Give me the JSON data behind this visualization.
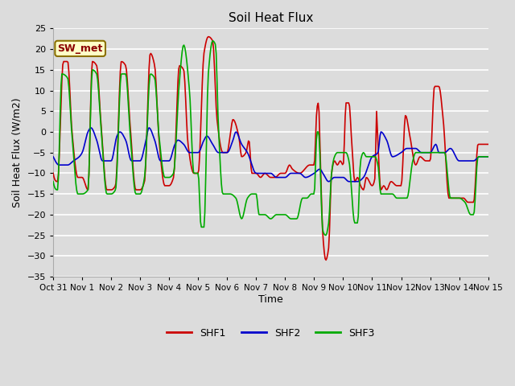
{
  "title": "Soil Heat Flux",
  "xlabel": "Time",
  "ylabel": "Soil Heat Flux (W/m2)",
  "ylim": [
    -35,
    25
  ],
  "bg_color": "#dcdcdc",
  "plot_bg_color": "#dcdcdc",
  "grid_color": "white",
  "annotation_text": "SW_met",
  "annotation_bg": "#ffffc8",
  "annotation_border": "#8B7000",
  "annotation_text_color": "#8B0000",
  "series": {
    "SHF1": {
      "color": "#cc0000",
      "linewidth": 1.2
    },
    "SHF2": {
      "color": "#0000cc",
      "linewidth": 1.2
    },
    "SHF3": {
      "color": "#00aa00",
      "linewidth": 1.2
    }
  },
  "x_tick_labels": [
    "Oct 31",
    "Nov 1",
    "Nov 2",
    "Nov 3",
    "Nov 4",
    "Nov 5",
    "Nov 6",
    "Nov 7",
    "Nov 8",
    "Nov 9",
    "Nov 10",
    "Nov 11",
    "Nov 12",
    "Nov 13",
    "Nov 14",
    "Nov 15"
  ],
  "y_ticks": [
    -35,
    -30,
    -25,
    -20,
    -15,
    -10,
    -5,
    0,
    5,
    10,
    15,
    20,
    25
  ],
  "shf1_keypoints": [
    [
      0.0,
      -10
    ],
    [
      0.15,
      -12
    ],
    [
      0.35,
      17
    ],
    [
      0.5,
      17
    ],
    [
      0.65,
      0
    ],
    [
      0.85,
      -11
    ],
    [
      1.0,
      -11
    ],
    [
      1.2,
      -14
    ],
    [
      1.35,
      17
    ],
    [
      1.5,
      16
    ],
    [
      1.65,
      2
    ],
    [
      1.85,
      -14
    ],
    [
      2.0,
      -14
    ],
    [
      2.15,
      -13
    ],
    [
      2.35,
      17
    ],
    [
      2.5,
      16
    ],
    [
      2.65,
      2
    ],
    [
      2.85,
      -14
    ],
    [
      3.0,
      -14
    ],
    [
      3.15,
      -12
    ],
    [
      3.35,
      19
    ],
    [
      3.5,
      16
    ],
    [
      3.65,
      -2
    ],
    [
      3.85,
      -13
    ],
    [
      4.0,
      -13
    ],
    [
      4.15,
      -11
    ],
    [
      4.35,
      16
    ],
    [
      4.5,
      15
    ],
    [
      4.65,
      -3
    ],
    [
      4.85,
      -10
    ],
    [
      5.0,
      -10
    ],
    [
      5.2,
      19
    ],
    [
      5.35,
      23
    ],
    [
      5.5,
      22
    ],
    [
      5.65,
      3
    ],
    [
      5.85,
      -5
    ],
    [
      6.0,
      -5
    ],
    [
      6.1,
      -1
    ],
    [
      6.2,
      3
    ],
    [
      6.4,
      -1
    ],
    [
      6.5,
      -6
    ],
    [
      6.65,
      -5
    ],
    [
      6.75,
      -2
    ],
    [
      6.85,
      -10
    ],
    [
      7.0,
      -10
    ],
    [
      7.15,
      -11
    ],
    [
      7.3,
      -10
    ],
    [
      7.5,
      -11
    ],
    [
      7.65,
      -11
    ],
    [
      7.85,
      -10
    ],
    [
      8.0,
      -10
    ],
    [
      8.15,
      -8
    ],
    [
      8.25,
      -9
    ],
    [
      8.5,
      -10
    ],
    [
      8.85,
      -8
    ],
    [
      9.0,
      -8
    ],
    [
      9.1,
      6
    ],
    [
      9.15,
      7
    ],
    [
      9.2,
      -3
    ],
    [
      9.3,
      -25
    ],
    [
      9.4,
      -31
    ],
    [
      9.5,
      -28
    ],
    [
      9.6,
      -10
    ],
    [
      9.7,
      -7
    ],
    [
      9.8,
      -8
    ],
    [
      9.9,
      -7
    ],
    [
      10.0,
      -8
    ],
    [
      10.1,
      7
    ],
    [
      10.2,
      7
    ],
    [
      10.3,
      -3
    ],
    [
      10.4,
      -12
    ],
    [
      10.5,
      -11
    ],
    [
      10.6,
      -13
    ],
    [
      10.7,
      -14
    ],
    [
      10.8,
      -11
    ],
    [
      11.0,
      -13
    ],
    [
      11.1,
      -11
    ],
    [
      11.15,
      5
    ],
    [
      11.2,
      -3
    ],
    [
      11.3,
      -14
    ],
    [
      11.4,
      -13
    ],
    [
      11.5,
      -14
    ],
    [
      11.65,
      -12
    ],
    [
      11.85,
      -13
    ],
    [
      12.0,
      -13
    ],
    [
      12.15,
      4
    ],
    [
      12.3,
      -1
    ],
    [
      12.5,
      -8
    ],
    [
      12.65,
      -6
    ],
    [
      12.85,
      -7
    ],
    [
      13.0,
      -7
    ],
    [
      13.15,
      11
    ],
    [
      13.3,
      11
    ],
    [
      13.45,
      3
    ],
    [
      13.65,
      -16
    ],
    [
      13.85,
      -16
    ],
    [
      14.0,
      -16
    ],
    [
      14.15,
      -16
    ],
    [
      14.3,
      -17
    ],
    [
      14.5,
      -17
    ],
    [
      14.65,
      -3
    ],
    [
      14.85,
      -3
    ],
    [
      15.0,
      -3
    ]
  ],
  "shf2_keypoints": [
    [
      0.0,
      -6
    ],
    [
      0.2,
      -8
    ],
    [
      0.5,
      -8
    ],
    [
      0.7,
      -7
    ],
    [
      0.9,
      -6
    ],
    [
      1.0,
      -5
    ],
    [
      1.2,
      0
    ],
    [
      1.3,
      1
    ],
    [
      1.5,
      -2
    ],
    [
      1.7,
      -7
    ],
    [
      2.0,
      -7
    ],
    [
      2.2,
      -1
    ],
    [
      2.3,
      0
    ],
    [
      2.5,
      -2
    ],
    [
      2.7,
      -7
    ],
    [
      3.0,
      -7
    ],
    [
      3.2,
      -2
    ],
    [
      3.3,
      1
    ],
    [
      3.5,
      -2
    ],
    [
      3.7,
      -7
    ],
    [
      4.0,
      -7
    ],
    [
      4.2,
      -3
    ],
    [
      4.3,
      -2
    ],
    [
      4.5,
      -3
    ],
    [
      4.7,
      -5
    ],
    [
      5.0,
      -5
    ],
    [
      5.2,
      -2
    ],
    [
      5.3,
      -1
    ],
    [
      5.5,
      -3
    ],
    [
      5.7,
      -5
    ],
    [
      6.0,
      -5
    ],
    [
      6.2,
      -2
    ],
    [
      6.3,
      0
    ],
    [
      6.5,
      -3
    ],
    [
      6.7,
      -5
    ],
    [
      7.0,
      -10
    ],
    [
      7.2,
      -10
    ],
    [
      7.5,
      -10
    ],
    [
      7.7,
      -11
    ],
    [
      8.0,
      -11
    ],
    [
      8.2,
      -10
    ],
    [
      8.5,
      -10
    ],
    [
      8.7,
      -11
    ],
    [
      9.0,
      -10
    ],
    [
      9.2,
      -9
    ],
    [
      9.3,
      -10
    ],
    [
      9.5,
      -12
    ],
    [
      9.7,
      -11
    ],
    [
      10.0,
      -11
    ],
    [
      10.2,
      -12
    ],
    [
      10.5,
      -12
    ],
    [
      10.7,
      -11
    ],
    [
      11.0,
      -6
    ],
    [
      11.2,
      -5
    ],
    [
      11.3,
      0
    ],
    [
      11.5,
      -2
    ],
    [
      11.7,
      -6
    ],
    [
      12.0,
      -5
    ],
    [
      12.2,
      -4
    ],
    [
      12.5,
      -4
    ],
    [
      12.7,
      -5
    ],
    [
      13.0,
      -5
    ],
    [
      13.2,
      -3
    ],
    [
      13.3,
      -5
    ],
    [
      13.5,
      -5
    ],
    [
      13.7,
      -4
    ],
    [
      14.0,
      -7
    ],
    [
      14.2,
      -7
    ],
    [
      14.5,
      -7
    ],
    [
      14.7,
      -6
    ],
    [
      15.0,
      -6
    ]
  ],
  "shf3_keypoints": [
    [
      0.0,
      -12
    ],
    [
      0.15,
      -14
    ],
    [
      0.3,
      14
    ],
    [
      0.5,
      13
    ],
    [
      0.65,
      -1
    ],
    [
      0.85,
      -15
    ],
    [
      1.0,
      -15
    ],
    [
      1.2,
      -14
    ],
    [
      1.35,
      15
    ],
    [
      1.5,
      14
    ],
    [
      1.65,
      1
    ],
    [
      1.85,
      -15
    ],
    [
      2.0,
      -15
    ],
    [
      2.15,
      -14
    ],
    [
      2.35,
      14
    ],
    [
      2.5,
      14
    ],
    [
      2.65,
      0
    ],
    [
      2.85,
      -15
    ],
    [
      3.0,
      -15
    ],
    [
      3.15,
      -11
    ],
    [
      3.35,
      14
    ],
    [
      3.5,
      13
    ],
    [
      3.65,
      -1
    ],
    [
      3.85,
      -11
    ],
    [
      4.0,
      -11
    ],
    [
      4.15,
      -10
    ],
    [
      4.35,
      12
    ],
    [
      4.5,
      21
    ],
    [
      4.7,
      10
    ],
    [
      4.85,
      -10
    ],
    [
      5.0,
      -10
    ],
    [
      5.1,
      -23
    ],
    [
      5.2,
      -23
    ],
    [
      5.35,
      14
    ],
    [
      5.5,
      22
    ],
    [
      5.6,
      21
    ],
    [
      5.7,
      1
    ],
    [
      5.85,
      -15
    ],
    [
      6.0,
      -15
    ],
    [
      6.1,
      -15
    ],
    [
      6.3,
      -16
    ],
    [
      6.5,
      -21
    ],
    [
      6.7,
      -16
    ],
    [
      6.85,
      -15
    ],
    [
      7.0,
      -15
    ],
    [
      7.1,
      -20
    ],
    [
      7.3,
      -20
    ],
    [
      7.5,
      -21
    ],
    [
      7.7,
      -20
    ],
    [
      8.0,
      -20
    ],
    [
      8.2,
      -21
    ],
    [
      8.4,
      -21
    ],
    [
      8.6,
      -16
    ],
    [
      8.75,
      -16
    ],
    [
      8.9,
      -15
    ],
    [
      9.0,
      -15
    ],
    [
      9.1,
      0
    ],
    [
      9.15,
      0
    ],
    [
      9.3,
      -24
    ],
    [
      9.4,
      -25
    ],
    [
      9.5,
      -22
    ],
    [
      9.6,
      -10
    ],
    [
      9.7,
      -6
    ],
    [
      9.8,
      -5
    ],
    [
      10.0,
      -5
    ],
    [
      10.1,
      -5
    ],
    [
      10.2,
      -7
    ],
    [
      10.4,
      -22
    ],
    [
      10.5,
      -22
    ],
    [
      10.6,
      -7
    ],
    [
      10.7,
      -5
    ],
    [
      10.8,
      -6
    ],
    [
      11.0,
      -6
    ],
    [
      11.1,
      -6
    ],
    [
      11.2,
      -8
    ],
    [
      11.3,
      -15
    ],
    [
      11.5,
      -15
    ],
    [
      11.7,
      -15
    ],
    [
      11.85,
      -16
    ],
    [
      12.0,
      -16
    ],
    [
      12.1,
      -16
    ],
    [
      12.2,
      -16
    ],
    [
      12.4,
      -7
    ],
    [
      12.5,
      -5
    ],
    [
      12.65,
      -5
    ],
    [
      12.85,
      -5
    ],
    [
      13.0,
      -5
    ],
    [
      13.15,
      -5
    ],
    [
      13.3,
      -5
    ],
    [
      13.5,
      -5
    ],
    [
      13.7,
      -16
    ],
    [
      13.85,
      -16
    ],
    [
      14.0,
      -16
    ],
    [
      14.2,
      -17
    ],
    [
      14.4,
      -20
    ],
    [
      14.5,
      -20
    ],
    [
      14.65,
      -6
    ],
    [
      14.85,
      -6
    ],
    [
      15.0,
      -6
    ]
  ]
}
